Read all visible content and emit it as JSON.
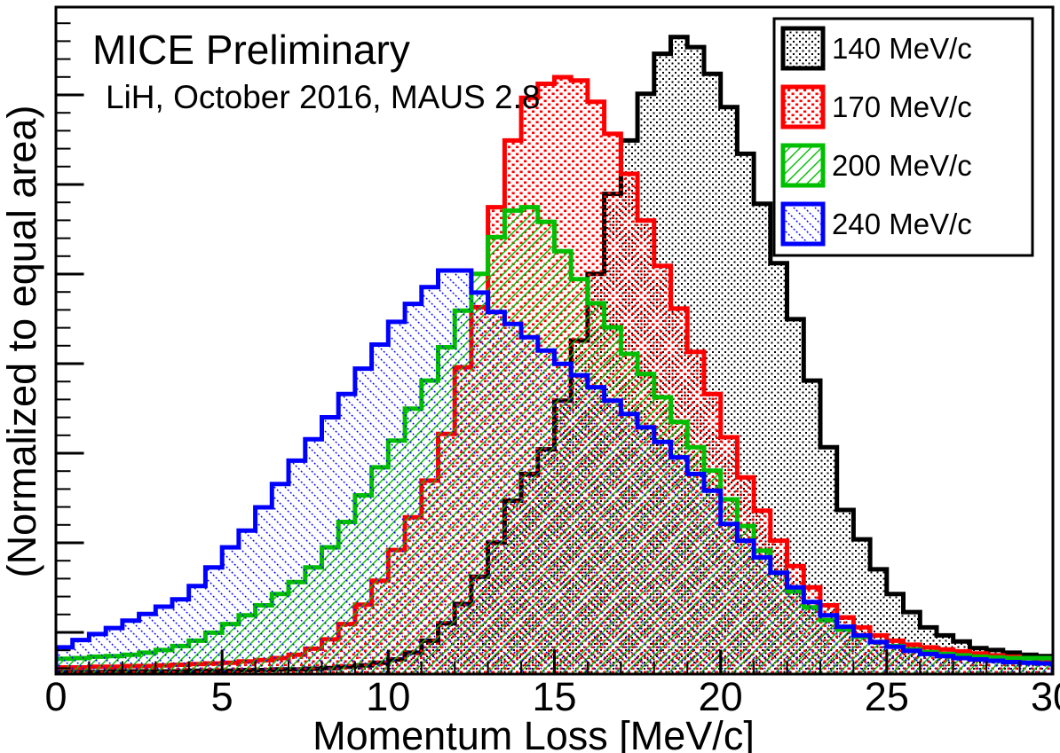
{
  "chart_data": {
    "type": "histogram-step",
    "title": "MICE Preliminary",
    "subtitle": "LiH, October 2016, MAUS 2.8",
    "xlabel": "Momentum Loss [MeV/c]",
    "ylabel": "(Normalized to equal area)",
    "xlim": [
      0,
      30
    ],
    "x_major_ticks": [
      0,
      5,
      10,
      15,
      20,
      25,
      30
    ],
    "x_minor_tick_step": 1,
    "y_tick_labels_shown": false,
    "grid": false,
    "legend_position": "top-right",
    "bin_width": 0.5,
    "x_start": 0,
    "values_note": "bin heights as fraction of plot frame height, read from pixels",
    "series": [
      {
        "name": "140 MeV/c",
        "color": "#000000",
        "fill_style": "dots-fine",
        "values": [
          0.003,
          0.003,
          0.003,
          0.004,
          0.004,
          0.004,
          0.004,
          0.004,
          0.005,
          0.005,
          0.005,
          0.006,
          0.006,
          0.007,
          0.007,
          0.008,
          0.009,
          0.011,
          0.013,
          0.017,
          0.022,
          0.032,
          0.05,
          0.076,
          0.105,
          0.146,
          0.197,
          0.26,
          0.3,
          0.337,
          0.41,
          0.5,
          0.6,
          0.72,
          0.8,
          0.87,
          0.93,
          0.955,
          0.94,
          0.9,
          0.85,
          0.78,
          0.705,
          0.616,
          0.532,
          0.44,
          0.34,
          0.246,
          0.202,
          0.157,
          0.12,
          0.093,
          0.07,
          0.058,
          0.049,
          0.039,
          0.036,
          0.032,
          0.029,
          0.027
        ]
      },
      {
        "name": "170 MeV/c",
        "color": "#ff0000",
        "fill_style": "dots-coarse",
        "values": [
          0.01,
          0.01,
          0.011,
          0.011,
          0.012,
          0.012,
          0.013,
          0.014,
          0.015,
          0.016,
          0.017,
          0.019,
          0.021,
          0.024,
          0.029,
          0.038,
          0.052,
          0.075,
          0.104,
          0.14,
          0.186,
          0.235,
          0.29,
          0.36,
          0.46,
          0.55,
          0.7,
          0.8,
          0.864,
          0.885,
          0.895,
          0.89,
          0.858,
          0.81,
          0.75,
          0.68,
          0.612,
          0.548,
          0.483,
          0.42,
          0.355,
          0.295,
          0.245,
          0.2,
          0.162,
          0.13,
          0.103,
          0.085,
          0.07,
          0.058,
          0.05,
          0.044,
          0.04,
          0.037,
          0.034,
          0.031,
          0.028,
          0.026,
          0.024,
          0.021
        ]
      },
      {
        "name": "200 MeV/c",
        "color": "#00bf00",
        "fill_style": "hatch-forward",
        "values": [
          0.023,
          0.024,
          0.026,
          0.027,
          0.029,
          0.032,
          0.036,
          0.042,
          0.05,
          0.062,
          0.075,
          0.088,
          0.103,
          0.12,
          0.138,
          0.16,
          0.19,
          0.228,
          0.268,
          0.31,
          0.35,
          0.398,
          0.44,
          0.49,
          0.545,
          0.6,
          0.655,
          0.695,
          0.7,
          0.678,
          0.634,
          0.592,
          0.556,
          0.52,
          0.48,
          0.45,
          0.415,
          0.378,
          0.34,
          0.305,
          0.262,
          0.222,
          0.185,
          0.152,
          0.124,
          0.1,
          0.081,
          0.067,
          0.056,
          0.048,
          0.042,
          0.037,
          0.033,
          0.03,
          0.028,
          0.026,
          0.025,
          0.024,
          0.024,
          0.024
        ]
      },
      {
        "name": "240 MeV/c",
        "color": "#0000ff",
        "fill_style": "hatch-backward",
        "values": [
          0.04,
          0.051,
          0.06,
          0.069,
          0.08,
          0.09,
          0.101,
          0.112,
          0.132,
          0.16,
          0.19,
          0.215,
          0.25,
          0.285,
          0.32,
          0.352,
          0.385,
          0.42,
          0.458,
          0.494,
          0.528,
          0.555,
          0.58,
          0.605,
          0.605,
          0.572,
          0.543,
          0.525,
          0.505,
          0.485,
          0.465,
          0.448,
          0.43,
          0.41,
          0.39,
          0.37,
          0.348,
          0.325,
          0.3,
          0.275,
          0.225,
          0.2,
          0.175,
          0.152,
          0.13,
          0.108,
          0.088,
          0.071,
          0.058,
          0.048,
          0.041,
          0.035,
          0.03,
          0.027,
          0.024,
          0.022,
          0.02,
          0.018,
          0.017,
          0.016
        ]
      }
    ]
  }
}
